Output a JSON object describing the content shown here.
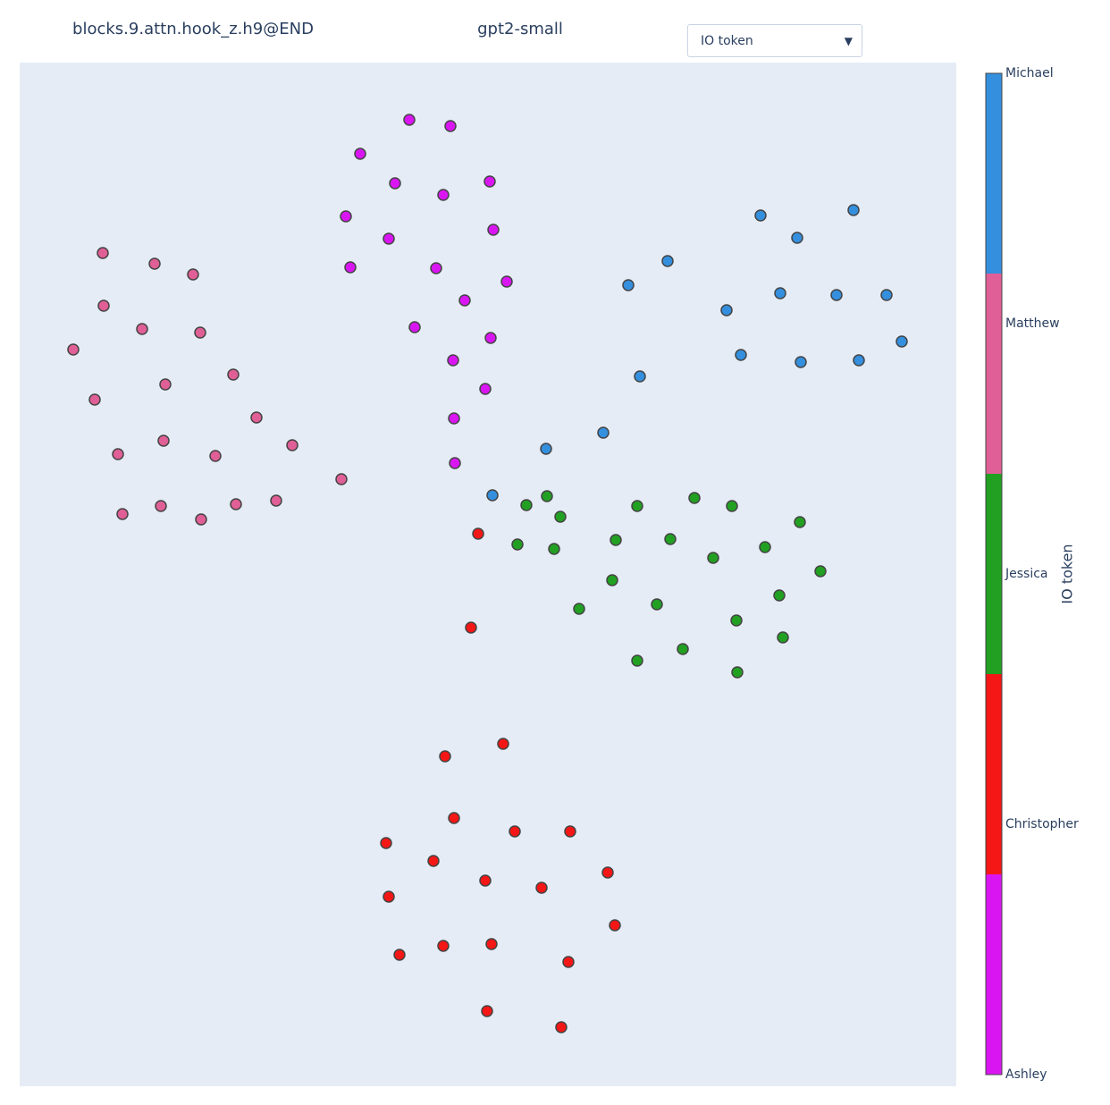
{
  "chart_data": {
    "type": "scatter",
    "title": "blocks.9.attn.hook_z.h9@END",
    "subtitle": "gpt2-small",
    "dropdown": "IO token",
    "colorbar_title": "IO token",
    "xlim": [
      0,
      1048
    ],
    "ylim": [
      0,
      1145
    ],
    "background": "#e5ecf6",
    "series": [
      {
        "name": "Ashley",
        "color": "#d916f2",
        "x": [
          436,
          482,
          381,
          420,
          474,
          526,
          365,
          413,
          530,
          370,
          466,
          545,
          498,
          442,
          527,
          485,
          521,
          486,
          487
        ],
        "y": [
          1081,
          1074,
          1043,
          1010,
          997,
          1012,
          973,
          948,
          958,
          916,
          915,
          900,
          879,
          849,
          837,
          812,
          780,
          747,
          697
        ]
      },
      {
        "name": "Christopher",
        "color": "#f51616",
        "x": [
          513,
          505,
          541,
          476,
          486,
          554,
          616,
          410,
          463,
          521,
          584,
          658,
          413,
          666,
          425,
          474,
          528,
          614,
          523,
          606
        ],
        "y": [
          618,
          513,
          383,
          369,
          300,
          285,
          285,
          272,
          252,
          230,
          222,
          239,
          212,
          180,
          147,
          157,
          159,
          139,
          84,
          66
        ]
      },
      {
        "name": "Jessica",
        "color": "#22a022",
        "x": [
          567,
          590,
          605,
          557,
          598,
          691,
          755,
          797,
          873,
          667,
          728,
          776,
          834,
          896,
          663,
          626,
          713,
          850,
          802,
          854,
          691,
          742,
          803
        ],
        "y": [
          650,
          660,
          637,
          606,
          601,
          649,
          658,
          649,
          631,
          611,
          612,
          591,
          603,
          576,
          566,
          534,
          539,
          549,
          521,
          502,
          476,
          489,
          463
        ]
      },
      {
        "name": "Matthew",
        "color": "#e05f96",
        "x": [
          93,
          151,
          194,
          94,
          137,
          202,
          60,
          163,
          239,
          84,
          265,
          161,
          305,
          110,
          219,
          360,
          115,
          158,
          203,
          242,
          287
        ],
        "y": [
          932,
          920,
          908,
          873,
          847,
          843,
          824,
          785,
          796,
          768,
          748,
          722,
          717,
          707,
          705,
          679,
          640,
          649,
          634,
          651,
          655
        ]
      },
      {
        "name": "Michael",
        "color": "#348fde",
        "x": [
          829,
          933,
          870,
          725,
          681,
          851,
          914,
          970,
          791,
          987,
          807,
          874,
          939,
          694,
          653,
          589,
          529
        ],
        "y": [
          974,
          980,
          949,
          923,
          896,
          887,
          885,
          885,
          868,
          833,
          818,
          810,
          812,
          794,
          731,
          713,
          661
        ]
      }
    ]
  }
}
